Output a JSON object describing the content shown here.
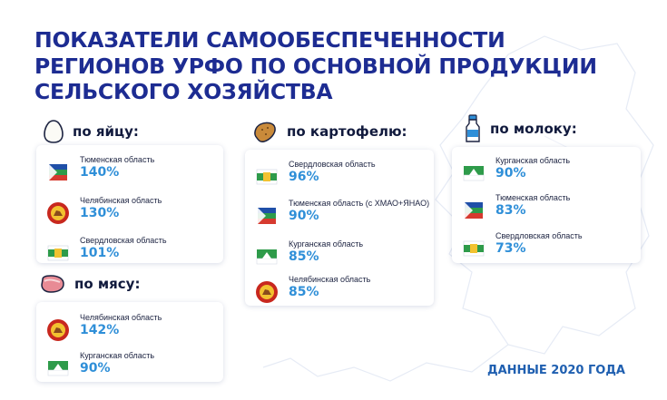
{
  "title_lines": [
    "ПОКАЗАТЕЛИ САМООБЕСПЕЧЕННОСТИ",
    "РЕГИОНОВ УРФО ПО ОСНОВНОЙ ПРОДУКЦИИ",
    "СЕЛЬСКОГО ХОЗЯЙСТВА"
  ],
  "sections": {
    "eggs": {
      "label": "по яйцу:",
      "icon": "egg-icon",
      "items": [
        {
          "region": "Тюменская область",
          "value": "140%",
          "flag": "tyumen"
        },
        {
          "region": "Челябинская область",
          "value": "130%",
          "flag": "chelyabinsk"
        },
        {
          "region": "Свердловская область",
          "value": "101%",
          "flag": "sverdlovsk"
        }
      ]
    },
    "meat": {
      "label": "по мясу:",
      "icon": "meat-icon",
      "items": [
        {
          "region": "Челябинская область",
          "value": "142%",
          "flag": "chelyabinsk"
        },
        {
          "region": "Курганская область",
          "value": "90%",
          "flag": "kurgan"
        }
      ]
    },
    "potato": {
      "label": "по картофелю:",
      "icon": "potato-icon",
      "items": [
        {
          "region": "Свердловская область",
          "value": "96%",
          "flag": "sverdlovsk"
        },
        {
          "region": "Тюменская область (с ХМАО+ЯНАО)",
          "value": "90%",
          "flag": "tyumen"
        },
        {
          "region": "Курганская область",
          "value": "85%",
          "flag": "kurgan"
        },
        {
          "region": "Челябинская область",
          "value": "85%",
          "flag": "chelyabinsk"
        }
      ]
    },
    "milk": {
      "label": "по молоку:",
      "icon": "milk-bottle-icon",
      "items": [
        {
          "region": "Курганская область",
          "value": "90%",
          "flag": "kurgan"
        },
        {
          "region": "Тюменская область",
          "value": "83%",
          "flag": "tyumen"
        },
        {
          "region": "Свердловская область",
          "value": "73%",
          "flag": "sverdlovsk"
        }
      ]
    }
  },
  "footer": "ДАННЫЕ 2020 ГОДА",
  "colors": {
    "title": "#1d2c92",
    "value": "#2f8fd8",
    "footer": "#1f5fb0"
  }
}
